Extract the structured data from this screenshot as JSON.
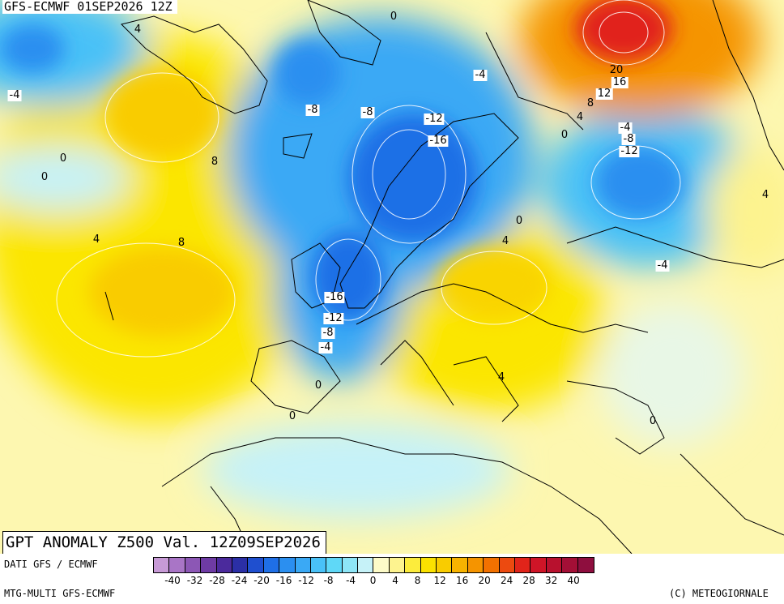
{
  "map": {
    "run_label": "GFS-ECMWF 01SEP2026 12Z",
    "product_label": "GPT ANOMALY Z500 Val. 12Z09SEP2026",
    "contour_labels": [
      {
        "text": "0",
        "boxed": false
      },
      {
        "text": "4",
        "boxed": false
      },
      {
        "text": "-4",
        "boxed": true
      },
      {
        "text": "0",
        "boxed": false
      },
      {
        "text": "0",
        "boxed": false
      },
      {
        "text": "8",
        "boxed": false
      },
      {
        "text": "4",
        "boxed": false
      },
      {
        "text": "8",
        "boxed": false
      },
      {
        "text": "-4",
        "boxed": true
      },
      {
        "text": "-8",
        "boxed": true
      },
      {
        "text": "-8",
        "boxed": true
      },
      {
        "text": "-12",
        "boxed": true
      },
      {
        "text": "-16",
        "boxed": true
      },
      {
        "text": "20",
        "boxed": false
      },
      {
        "text": "16",
        "boxed": true
      },
      {
        "text": "12",
        "boxed": true
      },
      {
        "text": "8",
        "boxed": false
      },
      {
        "text": "4",
        "boxed": false
      },
      {
        "text": "0",
        "boxed": false
      },
      {
        "text": "-4",
        "boxed": true
      },
      {
        "text": "-8",
        "boxed": true
      },
      {
        "text": "-12",
        "boxed": true
      },
      {
        "text": "4",
        "boxed": false
      },
      {
        "text": "0",
        "boxed": false
      },
      {
        "text": "4",
        "boxed": false
      },
      {
        "text": "-4",
        "boxed": true
      },
      {
        "text": "-16",
        "boxed": true
      },
      {
        "text": "-12",
        "boxed": true
      },
      {
        "text": "-8",
        "boxed": true
      },
      {
        "text": "-4",
        "boxed": true
      },
      {
        "text": "0",
        "boxed": false
      },
      {
        "text": "0",
        "boxed": false
      },
      {
        "text": "4",
        "boxed": false
      },
      {
        "text": "0",
        "boxed": false
      }
    ]
  },
  "footer": {
    "data_source": "DATI GFS / ECMWF",
    "model_name": "MTG-MULTI GFS-ECMWF",
    "copyright": "(C) METEOGIORNALE"
  },
  "colorbar": {
    "colors": [
      "#c79ad6",
      "#a975c6",
      "#8c57b5",
      "#6e3ba4",
      "#4b2a9c",
      "#2b2fa6",
      "#1f4fcf",
      "#1f6fe6",
      "#2b8ff0",
      "#3aa9f5",
      "#49c1f7",
      "#5fd8f7",
      "#8ee6f7",
      "#c6f2f8",
      "#fdfbc8",
      "#fdf38f",
      "#fcec3c",
      "#fbe200",
      "#f9cc00",
      "#f7b300",
      "#f59400",
      "#f27100",
      "#ec4a10",
      "#e1241a",
      "#cf1527",
      "#b8112e",
      "#a30f36",
      "#8e0e3e"
    ],
    "tick_labels": [
      "-40",
      "-32",
      "-28",
      "-24",
      "-20",
      "-16",
      "-12",
      "-8",
      "-4",
      "0",
      "4",
      "8",
      "12",
      "16",
      "20",
      "24",
      "28",
      "32",
      "40"
    ]
  }
}
